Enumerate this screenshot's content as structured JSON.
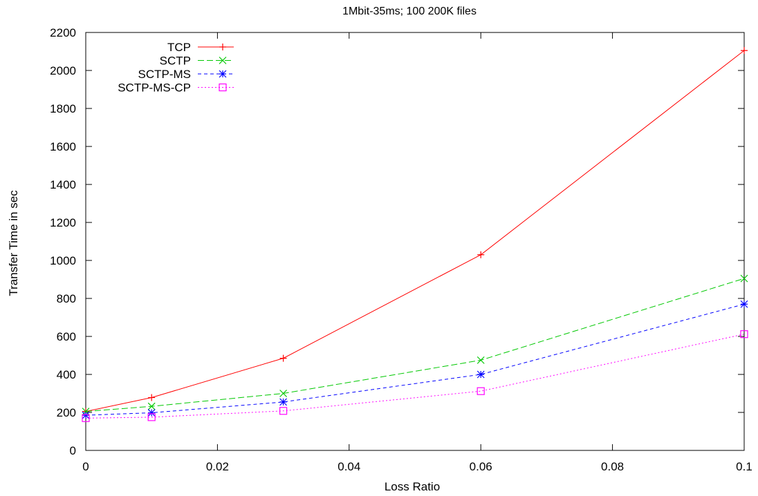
{
  "chart_data": {
    "type": "line",
    "title": "1Mbit-35ms; 100 200K files",
    "xlabel": "Loss Ratio",
    "ylabel": "Transfer Time in sec",
    "x": [
      0,
      0.01,
      0.03,
      0.06,
      0.1
    ],
    "xlim": [
      0,
      0.1
    ],
    "ylim": [
      0,
      2200
    ],
    "xticks": [
      0,
      0.02,
      0.04,
      0.06,
      0.08,
      0.1
    ],
    "xtick_labels": [
      "0",
      "0.02",
      "0.04",
      "0.06",
      "0.08",
      "0.1"
    ],
    "yticks": [
      0,
      200,
      400,
      600,
      800,
      1000,
      1200,
      1400,
      1600,
      1800,
      2000,
      2200
    ],
    "ytick_labels": [
      "0",
      "200",
      "400",
      "600",
      "800",
      "1000",
      "1200",
      "1400",
      "1600",
      "1800",
      "2000",
      "2200"
    ],
    "grid": false,
    "legend_position": "top-left",
    "series": [
      {
        "name": "TCP",
        "values": [
          205,
          278,
          485,
          1030,
          2105
        ],
        "color": "#ff0000",
        "dash": "solid",
        "marker": "plus"
      },
      {
        "name": "SCTP",
        "values": [
          205,
          232,
          300,
          475,
          905
        ],
        "color": "#00c800",
        "dash": "dashed",
        "marker": "cross"
      },
      {
        "name": "SCTP-MS",
        "values": [
          185,
          198,
          255,
          400,
          770
        ],
        "color": "#0000ff",
        "dash": "short-dashed",
        "marker": "star"
      },
      {
        "name": "SCTP-MS-CP",
        "values": [
          170,
          175,
          208,
          312,
          612
        ],
        "color": "#ff00ff",
        "dash": "dotted",
        "marker": "square"
      }
    ]
  }
}
